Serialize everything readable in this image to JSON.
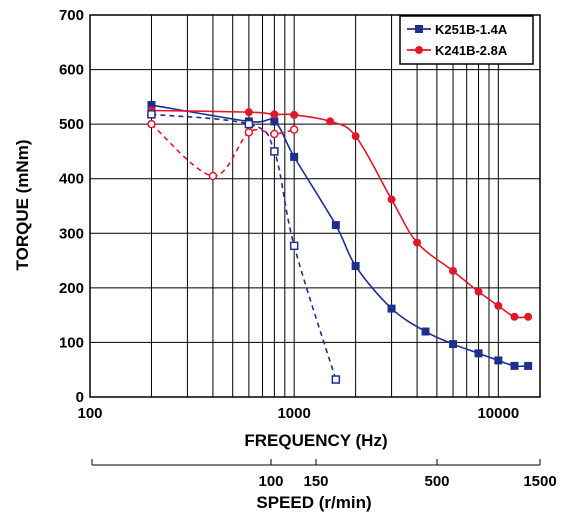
{
  "chart_data": {
    "type": "line",
    "xlabel": "FREQUENCY (Hz)",
    "ylabel": "TORQUE (mNm)",
    "x_scale": "log",
    "xlim": [
      100,
      16000
    ],
    "ylim": [
      0,
      700
    ],
    "x_tick_labels": [
      "100",
      "1000",
      "10000"
    ],
    "y_tick_labels": [
      "0",
      "100",
      "200",
      "300",
      "400",
      "500",
      "600",
      "700"
    ],
    "speed_axis": {
      "label": "SPEED (r/min)",
      "tick_labels": [
        "100",
        "150",
        "500",
        "1500"
      ]
    },
    "grid": true,
    "legend_position": "top-right",
    "series": [
      {
        "name": "K251B-1.4A",
        "color": "#1f2f8f",
        "marker": "square",
        "line": "solid",
        "x": [
          200,
          600,
          800,
          1000,
          1600,
          2000,
          3000,
          4400,
          6000,
          8000,
          10000,
          12000,
          14000
        ],
        "values": [
          535,
          505,
          505,
          440,
          315,
          240,
          162,
          120,
          97,
          80,
          67,
          57,
          57
        ]
      },
      {
        "name": "K241B-2.8A",
        "color": "#e0182a",
        "marker": "circle",
        "line": "solid",
        "x": [
          200,
          600,
          800,
          1000,
          1500,
          2000,
          3000,
          4000,
          6000,
          8000,
          10000,
          12000,
          14000
        ],
        "values": [
          525,
          522,
          518,
          517,
          505,
          478,
          362,
          283,
          231,
          193,
          167,
          147,
          147
        ]
      },
      {
        "color": "#1f2f8f",
        "marker": "square-open",
        "line": "dashed",
        "x": [
          200,
          600,
          800,
          1000,
          1600
        ],
        "values": [
          518,
          500,
          450,
          277,
          32
        ]
      },
      {
        "color": "#e0182a",
        "marker": "circle-open",
        "line": "dashed",
        "x": [
          200,
          400,
          600,
          800,
          1000
        ],
        "values": [
          500,
          405,
          485,
          482,
          490
        ]
      }
    ]
  }
}
